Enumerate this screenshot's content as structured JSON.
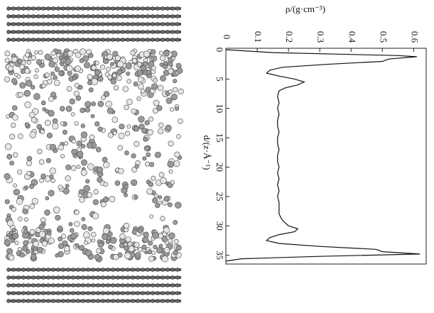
{
  "chart_data": {
    "type": "line",
    "swap_axes": true,
    "title": "ρ/(g·cm⁻³)",
    "x_label": "d/(z·Å⁻¹)",
    "x": [
      0,
      0.5,
      1,
      1.2,
      1.6,
      2,
      2.5,
      3,
      3.5,
      4,
      4.5,
      5,
      5.5,
      6,
      6.5,
      7,
      8,
      9,
      10,
      11,
      12,
      13,
      14,
      15,
      16,
      17,
      18,
      19,
      20,
      21,
      22,
      23,
      24,
      25,
      26,
      27,
      28,
      29,
      30,
      30.5,
      31,
      31.5,
      32,
      32.5,
      33,
      33.5,
      34,
      34.4,
      34.8,
      35.2,
      35.6,
      36
    ],
    "values": [
      0,
      0.15,
      0.55,
      0.61,
      0.52,
      0.5,
      0.32,
      0.18,
      0.14,
      0.13,
      0.17,
      0.22,
      0.25,
      0.23,
      0.19,
      0.17,
      0.165,
      0.17,
      0.165,
      0.17,
      0.165,
      0.165,
      0.17,
      0.165,
      0.165,
      0.17,
      0.165,
      0.165,
      0.17,
      0.165,
      0.17,
      0.165,
      0.17,
      0.165,
      0.17,
      0.17,
      0.17,
      0.18,
      0.2,
      0.23,
      0.22,
      0.17,
      0.14,
      0.13,
      0.17,
      0.3,
      0.48,
      0.5,
      0.62,
      0.3,
      0.05,
      0
    ],
    "color": "#111111",
    "xlim": [
      0,
      36.5
    ],
    "xticks": [
      0,
      5,
      10,
      15,
      20,
      25,
      30,
      35
    ],
    "ylim": [
      0,
      0.64
    ],
    "yticks": [
      0,
      0.1,
      0.2,
      0.3,
      0.4,
      0.5,
      0.6
    ]
  }
}
